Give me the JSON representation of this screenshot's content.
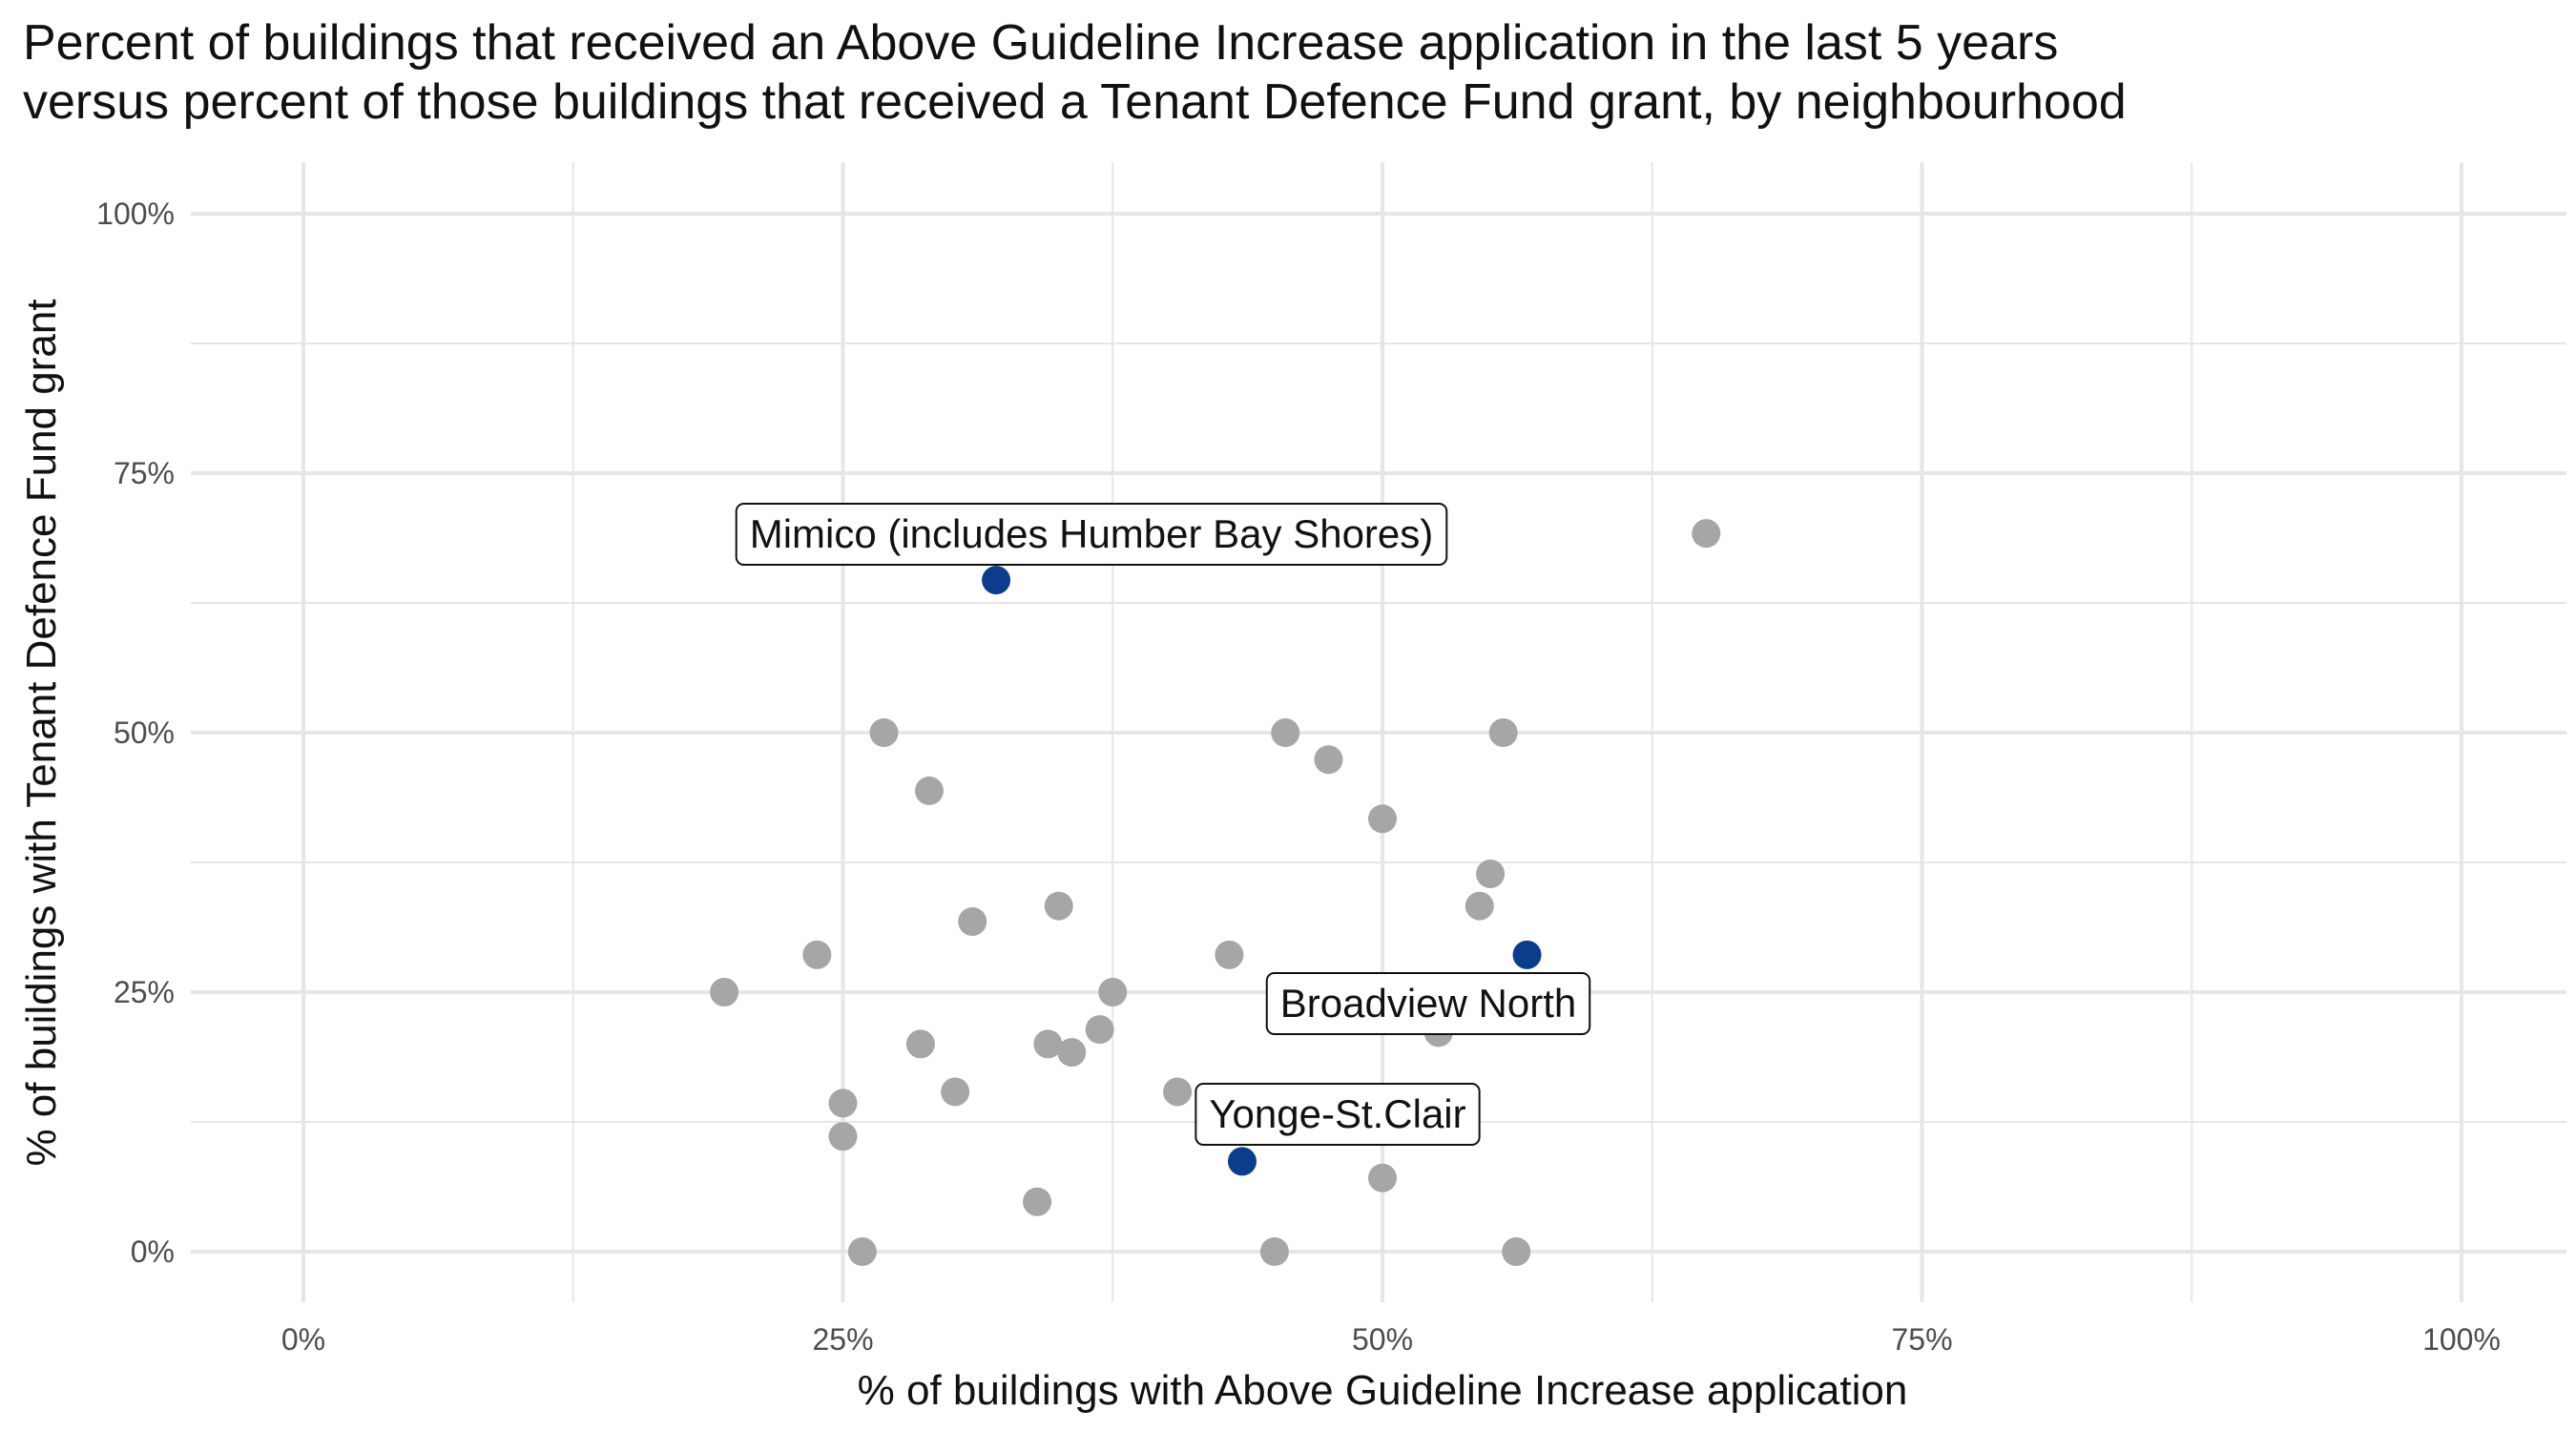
{
  "chart_data": {
    "type": "scatter",
    "title": "Percent of buildings that received an Above Guideline Increase application in the last 5 years",
    "subtitle": "versus percent of those buildings that received a Tenant Defence Fund grant, by neighbourhood",
    "xlabel": "% of buildings with Above Guideline Increase application",
    "ylabel": "% of buildings with Tenant Defence Fund grant",
    "xlim": [
      0,
      1
    ],
    "ylim": [
      0,
      1
    ],
    "x_ticks": [
      0,
      0.25,
      0.5,
      0.75,
      1
    ],
    "x_tick_labels": [
      "0%",
      "25%",
      "50%",
      "75%",
      "100%"
    ],
    "y_ticks": [
      0,
      0.25,
      0.5,
      0.75,
      1
    ],
    "y_tick_labels": [
      "0%",
      "25%",
      "50%",
      "75%",
      "100%"
    ],
    "grid": true,
    "colors": {
      "point": "#a6a6a6",
      "highlight": "#0b3d8c",
      "grid": "#e6e6e6"
    },
    "points": [
      {
        "x": 0.195,
        "y": 0.25
      },
      {
        "x": 0.238,
        "y": 0.286
      },
      {
        "x": 0.25,
        "y": 0.143
      },
      {
        "x": 0.25,
        "y": 0.111
      },
      {
        "x": 0.259,
        "y": 0.0
      },
      {
        "x": 0.269,
        "y": 0.5
      },
      {
        "x": 0.286,
        "y": 0.2
      },
      {
        "x": 0.29,
        "y": 0.444
      },
      {
        "x": 0.302,
        "y": 0.154
      },
      {
        "x": 0.31,
        "y": 0.318
      },
      {
        "x": 0.34,
        "y": 0.048
      },
      {
        "x": 0.345,
        "y": 0.2
      },
      {
        "x": 0.35,
        "y": 0.333
      },
      {
        "x": 0.356,
        "y": 0.192
      },
      {
        "x": 0.369,
        "y": 0.214
      },
      {
        "x": 0.375,
        "y": 0.25
      },
      {
        "x": 0.405,
        "y": 0.154
      },
      {
        "x": 0.429,
        "y": 0.286
      },
      {
        "x": 0.45,
        "y": 0.0
      },
      {
        "x": 0.455,
        "y": 0.5
      },
      {
        "x": 0.475,
        "y": 0.474
      },
      {
        "x": 0.5,
        "y": 0.417
      },
      {
        "x": 0.5,
        "y": 0.071
      },
      {
        "x": 0.526,
        "y": 0.211
      },
      {
        "x": 0.545,
        "y": 0.333
      },
      {
        "x": 0.55,
        "y": 0.364
      },
      {
        "x": 0.556,
        "y": 0.5
      },
      {
        "x": 0.562,
        "y": 0.0
      },
      {
        "x": 0.65,
        "y": 0.692
      }
    ],
    "highlighted": [
      {
        "label": "Mimico (includes Humber Bay Shores)",
        "x": 0.321,
        "y": 0.647
      },
      {
        "label": "Broadview North",
        "x": 0.567,
        "y": 0.286
      },
      {
        "label": "Yonge-St.Clair",
        "x": 0.435,
        "y": 0.087
      }
    ]
  }
}
